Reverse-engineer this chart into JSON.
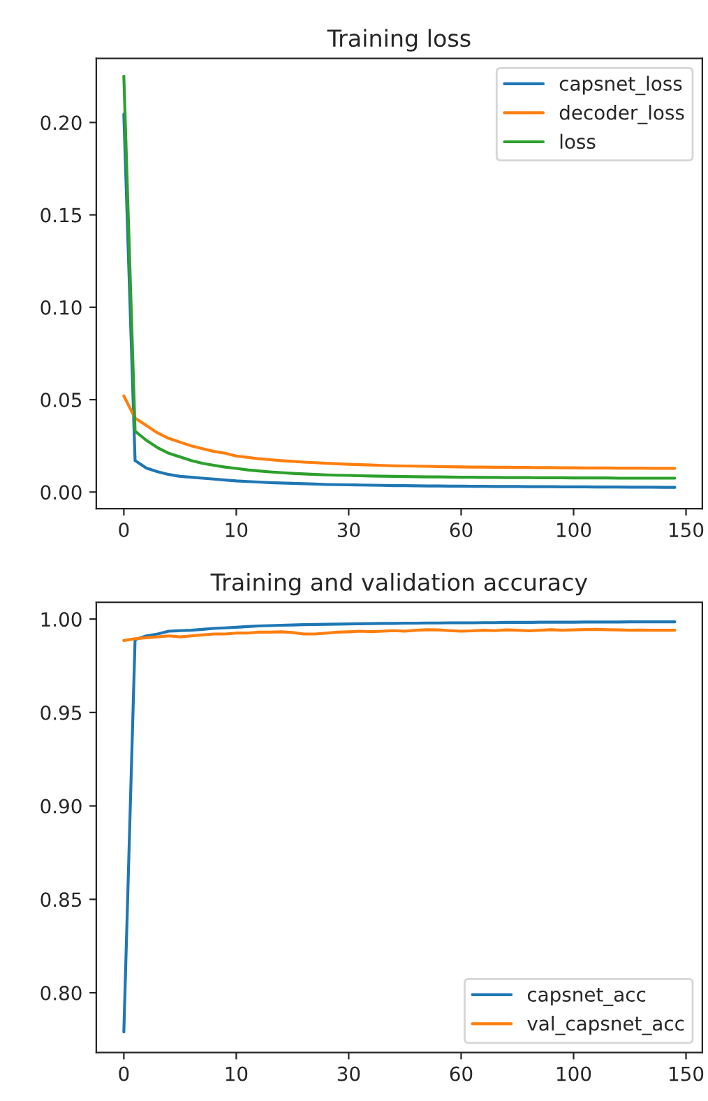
{
  "chart_data": [
    {
      "type": "line",
      "title": "Training loss",
      "categories": [
        "0",
        null,
        null,
        null,
        null,
        null,
        null,
        null,
        null,
        null,
        "10",
        null,
        null,
        null,
        null,
        null,
        null,
        null,
        null,
        null,
        "30",
        null,
        null,
        null,
        null,
        null,
        null,
        null,
        null,
        null,
        "60",
        null,
        null,
        null,
        null,
        null,
        null,
        null,
        null,
        null,
        "100",
        null,
        null,
        null,
        null,
        null,
        null,
        null,
        null,
        null,
        "150"
      ],
      "series": [
        {
          "name": "capsnet_loss",
          "color": "#1f77b4",
          "values": [
            0.2045,
            0.017,
            0.013,
            0.011,
            0.0095,
            0.0085,
            0.008,
            0.0075,
            0.007,
            0.0065,
            0.006,
            0.0057,
            0.0054,
            0.0051,
            0.0049,
            0.0047,
            0.0045,
            0.0043,
            0.0041,
            0.004,
            0.0039,
            0.0038,
            0.0037,
            0.0036,
            0.0035,
            0.0035,
            0.0034,
            0.0033,
            0.0033,
            0.0032,
            0.0032,
            0.0031,
            0.0031,
            0.003,
            0.003,
            0.003,
            0.0029,
            0.0029,
            0.0029,
            0.0028,
            0.0028,
            0.0028,
            0.0027,
            0.0027,
            0.0027,
            0.0026,
            0.0026,
            0.0026,
            0.0025,
            0.0025,
            null
          ]
        },
        {
          "name": "decoder_loss",
          "color": "#ff7f0e",
          "values": [
            0.052,
            0.04,
            0.036,
            0.032,
            0.029,
            0.027,
            0.025,
            0.0235,
            0.022,
            0.021,
            0.0195,
            0.0188,
            0.018,
            0.0175,
            0.017,
            0.0166,
            0.0162,
            0.0159,
            0.0156,
            0.0153,
            0.015,
            0.0148,
            0.0146,
            0.0144,
            0.0142,
            0.0141,
            0.014,
            0.0139,
            0.0138,
            0.0137,
            0.0136,
            0.0135,
            0.0135,
            0.0134,
            0.0134,
            0.0133,
            0.0133,
            0.0132,
            0.0132,
            0.0131,
            0.0131,
            0.013,
            0.013,
            0.013,
            0.0129,
            0.0129,
            0.0129,
            0.0128,
            0.0128,
            0.0128,
            null
          ]
        },
        {
          "name": "loss",
          "color": "#2ca02c",
          "values": [
            0.225,
            0.033,
            0.028,
            0.024,
            0.021,
            0.019,
            0.017,
            0.0155,
            0.0145,
            0.0135,
            0.0128,
            0.012,
            0.0114,
            0.0109,
            0.0105,
            0.0101,
            0.0098,
            0.0095,
            0.0093,
            0.0091,
            0.009,
            0.0088,
            0.0087,
            0.0086,
            0.0085,
            0.0084,
            0.0083,
            0.0082,
            0.0082,
            0.0081,
            0.008,
            0.008,
            0.0079,
            0.0079,
            0.0078,
            0.0078,
            0.0078,
            0.0077,
            0.0077,
            0.0077,
            0.0076,
            0.0076,
            0.0076,
            0.0076,
            0.0075,
            0.0075,
            0.0075,
            0.0075,
            0.0075,
            0.0075,
            null
          ]
        }
      ],
      "ylim": [
        -0.009,
        0.2347
      ],
      "yticks": [
        {
          "value": 0,
          "label": "0.00"
        },
        0.05,
        {
          "value": 0.1,
          "label": "0.10"
        },
        0.15,
        {
          "value": 0.2,
          "label": "0.20"
        }
      ],
      "legend": "top right",
      "grid": false,
      "line_style": "solid"
    },
    {
      "type": "line",
      "title": "Training and validation accuracy",
      "categories": [
        "0",
        null,
        null,
        null,
        null,
        null,
        null,
        null,
        null,
        null,
        "10",
        null,
        null,
        null,
        null,
        null,
        null,
        null,
        null,
        null,
        "30",
        null,
        null,
        null,
        null,
        null,
        null,
        null,
        null,
        null,
        "60",
        null,
        null,
        null,
        null,
        null,
        null,
        null,
        null,
        null,
        "100",
        null,
        null,
        null,
        null,
        null,
        null,
        null,
        null,
        null,
        "150"
      ],
      "series": [
        {
          "name": "capsnet_acc",
          "color": "#1f77b4",
          "values": [
            0.779,
            0.989,
            0.991,
            0.992,
            0.9935,
            0.9938,
            0.994,
            0.9945,
            0.995,
            0.9953,
            0.9956,
            0.996,
            0.9963,
            0.9965,
            0.9967,
            0.9968,
            0.997,
            0.9971,
            0.9972,
            0.9973,
            0.9974,
            0.9975,
            0.9976,
            0.9977,
            0.9977,
            0.9978,
            0.9978,
            0.9979,
            0.9979,
            0.998,
            0.998,
            0.998,
            0.9981,
            0.9981,
            0.9982,
            0.9982,
            0.9982,
            0.9983,
            0.9983,
            0.9983,
            0.9983,
            0.9984,
            0.9984,
            0.9984,
            0.9984,
            0.9985,
            0.9985,
            0.9985,
            0.9985,
            0.9985,
            null
          ]
        },
        {
          "name": "val_capsnet_acc",
          "color": "#ff7f0e",
          "values": [
            0.9885,
            0.9895,
            0.99,
            0.9905,
            0.991,
            0.9905,
            0.991,
            0.9915,
            0.992,
            0.992,
            0.9925,
            0.9925,
            0.993,
            0.993,
            0.9932,
            0.9928,
            0.992,
            0.992,
            0.9925,
            0.993,
            0.9932,
            0.9935,
            0.9933,
            0.9935,
            0.9938,
            0.9935,
            0.994,
            0.9943,
            0.9942,
            0.9938,
            0.9935,
            0.9937,
            0.994,
            0.9938,
            0.9942,
            0.994,
            0.9937,
            0.994,
            0.9943,
            0.994,
            0.9942,
            0.9944,
            0.9945,
            0.9943,
            0.9942,
            0.994,
            0.9941,
            0.994,
            0.994,
            0.994,
            null
          ]
        }
      ],
      "ylim": [
        0.768,
        1.009
      ],
      "yticks": [
        {
          "value": 0.8,
          "label": "0.80"
        },
        0.85,
        {
          "value": 0.9,
          "label": "0.90"
        },
        0.95,
        {
          "value": 1.0,
          "label": "1.00"
        }
      ],
      "legend": "bottom right",
      "grid": false,
      "line_style": "solid"
    }
  ]
}
